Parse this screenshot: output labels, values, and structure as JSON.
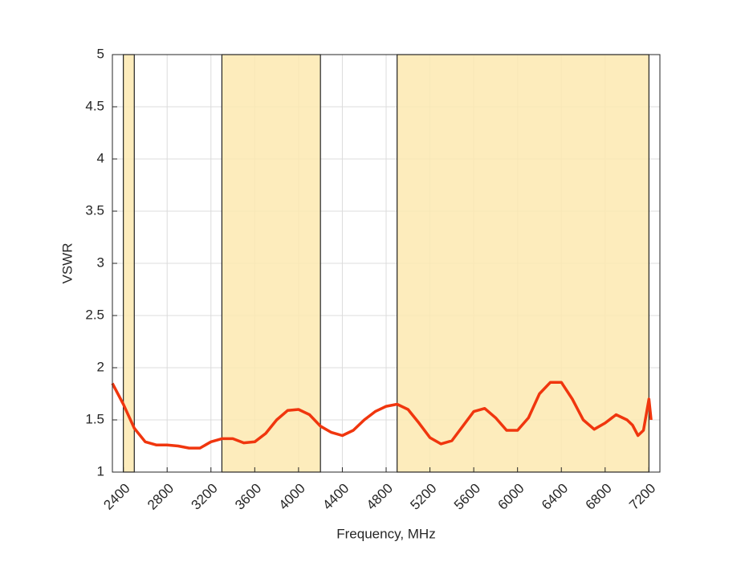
{
  "chart_data": {
    "type": "line",
    "xlabel": "Frequency, MHz",
    "ylabel": "VSWR",
    "x": [
      2300,
      2400,
      2500,
      2600,
      2700,
      2800,
      2900,
      3000,
      3100,
      3200,
      3300,
      3400,
      3500,
      3600,
      3700,
      3800,
      3900,
      4000,
      4100,
      4200,
      4300,
      4400,
      4500,
      4600,
      4700,
      4800,
      4900,
      5000,
      5100,
      5200,
      5300,
      5400,
      5500,
      5600,
      5700,
      5800,
      5900,
      6000,
      6100,
      6200,
      6300,
      6400,
      6500,
      6600,
      6700,
      6800,
      6900,
      7000,
      7050,
      7100,
      7150,
      7200,
      7220
    ],
    "series": [
      {
        "name": "VSWR",
        "color": "#f0360e",
        "values": [
          1.85,
          1.65,
          1.42,
          1.29,
          1.26,
          1.26,
          1.25,
          1.23,
          1.23,
          1.29,
          1.32,
          1.32,
          1.28,
          1.29,
          1.37,
          1.5,
          1.59,
          1.6,
          1.55,
          1.44,
          1.38,
          1.35,
          1.4,
          1.5,
          1.58,
          1.63,
          1.65,
          1.6,
          1.47,
          1.33,
          1.27,
          1.3,
          1.44,
          1.58,
          1.61,
          1.52,
          1.4,
          1.4,
          1.52,
          1.75,
          1.86,
          1.86,
          1.7,
          1.5,
          1.41,
          1.47,
          1.55,
          1.5,
          1.45,
          1.35,
          1.4,
          1.7,
          1.5
        ]
      }
    ],
    "bands": [
      [
        2400,
        2500
      ],
      [
        3300,
        4200
      ],
      [
        4900,
        7200
      ]
    ],
    "band_color": "#fde9b0",
    "band_edge": "#222222",
    "xlim": [
      2300,
      7300
    ],
    "ylim": [
      1,
      5
    ],
    "xticks": [
      2400,
      2800,
      3200,
      3600,
      4000,
      4400,
      4800,
      5200,
      5600,
      6000,
      6400,
      6800,
      7200
    ],
    "yticks": [
      1,
      1.5,
      2,
      2.5,
      3,
      3.5,
      4,
      4.5,
      5
    ],
    "grid": true
  }
}
